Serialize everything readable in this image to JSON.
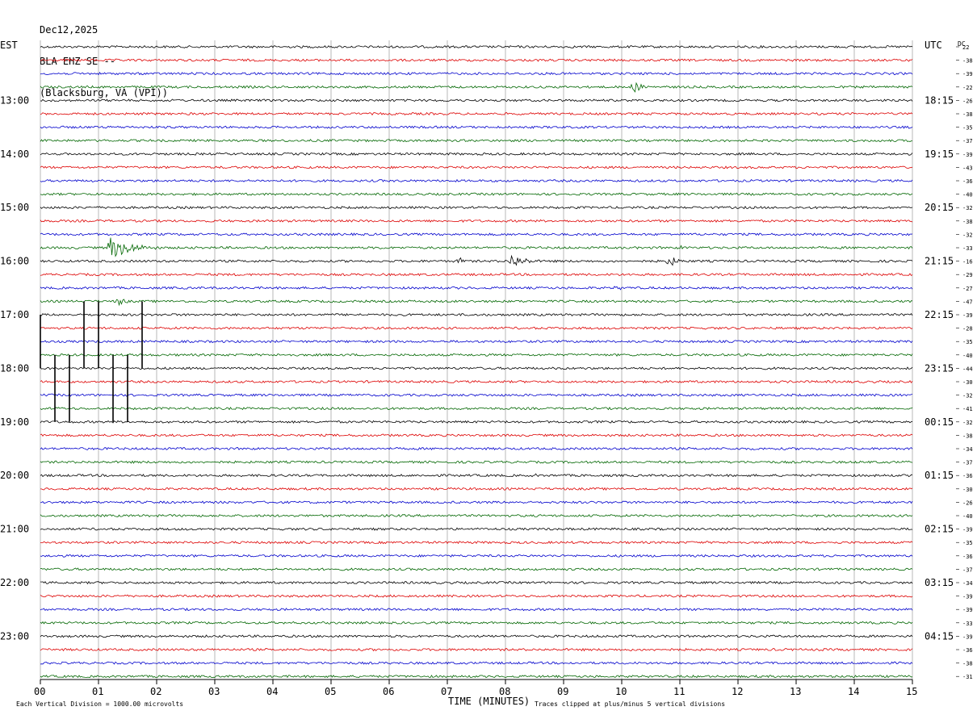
{
  "header": {
    "date": "Dec12,2025",
    "station": "BLA EHZ SE --",
    "location": "(Blacksburg, VA (VPI))"
  },
  "chart_data": {
    "type": "line",
    "left_axis_label": "EST",
    "right_axis_label": "UTC",
    "dc_label": "DC",
    "xlabel": "TIME (MINUTES)",
    "x_ticks": [
      "00",
      "01",
      "02",
      "03",
      "04",
      "05",
      "06",
      "07",
      "08",
      "09",
      "10",
      "11",
      "12",
      "13",
      "14",
      "15"
    ],
    "xlim": [
      0,
      15
    ],
    "left_hour_labels": [
      {
        "row": 4,
        "label": "13:00"
      },
      {
        "row": 8,
        "label": "14:00"
      },
      {
        "row": 12,
        "label": "15:00"
      },
      {
        "row": 16,
        "label": "16:00"
      },
      {
        "row": 20,
        "label": "17:00"
      },
      {
        "row": 24,
        "label": "18:00"
      },
      {
        "row": 28,
        "label": "19:00"
      },
      {
        "row": 32,
        "label": "20:00"
      },
      {
        "row": 36,
        "label": "21:00"
      },
      {
        "row": 40,
        "label": "22:00"
      },
      {
        "row": 44,
        "label": "23:00"
      }
    ],
    "right_hour_labels": [
      {
        "row": 4,
        "label": "18:15"
      },
      {
        "row": 8,
        "label": "19:15"
      },
      {
        "row": 12,
        "label": "20:15"
      },
      {
        "row": 16,
        "label": "21:15"
      },
      {
        "row": 20,
        "label": "22:15"
      },
      {
        "row": 24,
        "label": "23:15"
      },
      {
        "row": 28,
        "label": "00:15"
      },
      {
        "row": 32,
        "label": "01:15"
      },
      {
        "row": 36,
        "label": "02:15"
      },
      {
        "row": 40,
        "label": "03:15"
      },
      {
        "row": 44,
        "label": "04:15"
      }
    ],
    "trace_colors": [
      "#000000",
      "#dd0000",
      "#0000cc",
      "#006600"
    ],
    "dc_offsets": [
      "22",
      "-38",
      "-39",
      "-22",
      "-26",
      "-38",
      "-35",
      "-37",
      "-39",
      "-43",
      "-36",
      "-40",
      "-32",
      "-38",
      "-32",
      "-33",
      "-16",
      "-29",
      "-27",
      "-47",
      "-39",
      "-28",
      "-35",
      "-40",
      "-44",
      "-30",
      "-32",
      "-41",
      "-32",
      "-38",
      "-34",
      "-37",
      "-36",
      "-30",
      "-26",
      "-40",
      "-39",
      "-35",
      "-36",
      "-37",
      "-34",
      "-39",
      "-39",
      "-33",
      "-39",
      "-36",
      "-38",
      "-31"
    ],
    "events": [
      {
        "row": 3,
        "minute": 10.2,
        "amp": 7,
        "dur": 0.6
      },
      {
        "row": 15,
        "minute": 1.2,
        "amp": 14,
        "dur": 1.2
      },
      {
        "row": 15,
        "minute": 5.8,
        "amp": 3,
        "dur": 0.4
      },
      {
        "row": 15,
        "minute": 11.0,
        "amp": 3,
        "dur": 0.6
      },
      {
        "row": 16,
        "minute": 7.2,
        "amp": 5,
        "dur": 0.4
      },
      {
        "row": 16,
        "minute": 8.1,
        "amp": 9,
        "dur": 0.8
      },
      {
        "row": 16,
        "minute": 10.8,
        "amp": 8,
        "dur": 0.5
      },
      {
        "row": 18,
        "minute": 9.9,
        "amp": 4,
        "dur": 0.4
      },
      {
        "row": 18,
        "minute": 12.5,
        "amp": 3,
        "dur": 0.3
      },
      {
        "row": 19,
        "minute": 1.35,
        "amp": 6,
        "dur": 0.4
      },
      {
        "row": 27,
        "minute": 0.3,
        "amp": 3,
        "dur": 0.2
      },
      {
        "row": 32,
        "minute": 8.5,
        "amp": 3,
        "dur": 0.2
      }
    ],
    "clipped_spikes": [
      {
        "minute": 0.0,
        "from_row": 20,
        "to_row": 24
      },
      {
        "minute": 0.75,
        "from_row": 19,
        "to_row": 24
      },
      {
        "minute": 1.0,
        "from_row": 19,
        "to_row": 24
      },
      {
        "minute": 1.75,
        "from_row": 19,
        "to_row": 24
      },
      {
        "minute": 0.25,
        "from_row": 23,
        "to_row": 28
      },
      {
        "minute": 0.5,
        "from_row": 23,
        "to_row": 28
      },
      {
        "minute": 1.25,
        "from_row": 23,
        "to_row": 28
      },
      {
        "minute": 1.5,
        "from_row": 23,
        "to_row": 28
      }
    ]
  },
  "footer": {
    "scale_note": "Each Vertical Division = 1000.00 microvolts",
    "clip_note": "Traces clipped at plus/minus 5 vertical divisions"
  }
}
